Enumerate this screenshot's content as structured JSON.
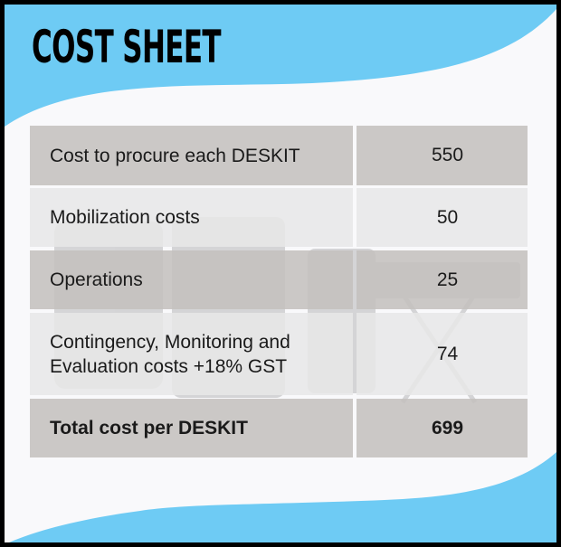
{
  "title": "COST SHEET",
  "colors": {
    "accent": "#6ecbf4",
    "border": "#000000",
    "row_dark": "#c9c6c4",
    "row_light": "#e9e8e8"
  },
  "rows": [
    {
      "label": "Cost to procure each DESKIT",
      "value": "550"
    },
    {
      "label": "Mobilization costs",
      "value": "50"
    },
    {
      "label": "Operations",
      "value": "25"
    },
    {
      "label": "Contingency, Monitoring and Evaluation costs +18% GST",
      "value": "74"
    },
    {
      "label": "Total cost per DESKIT",
      "value": "699"
    }
  ]
}
